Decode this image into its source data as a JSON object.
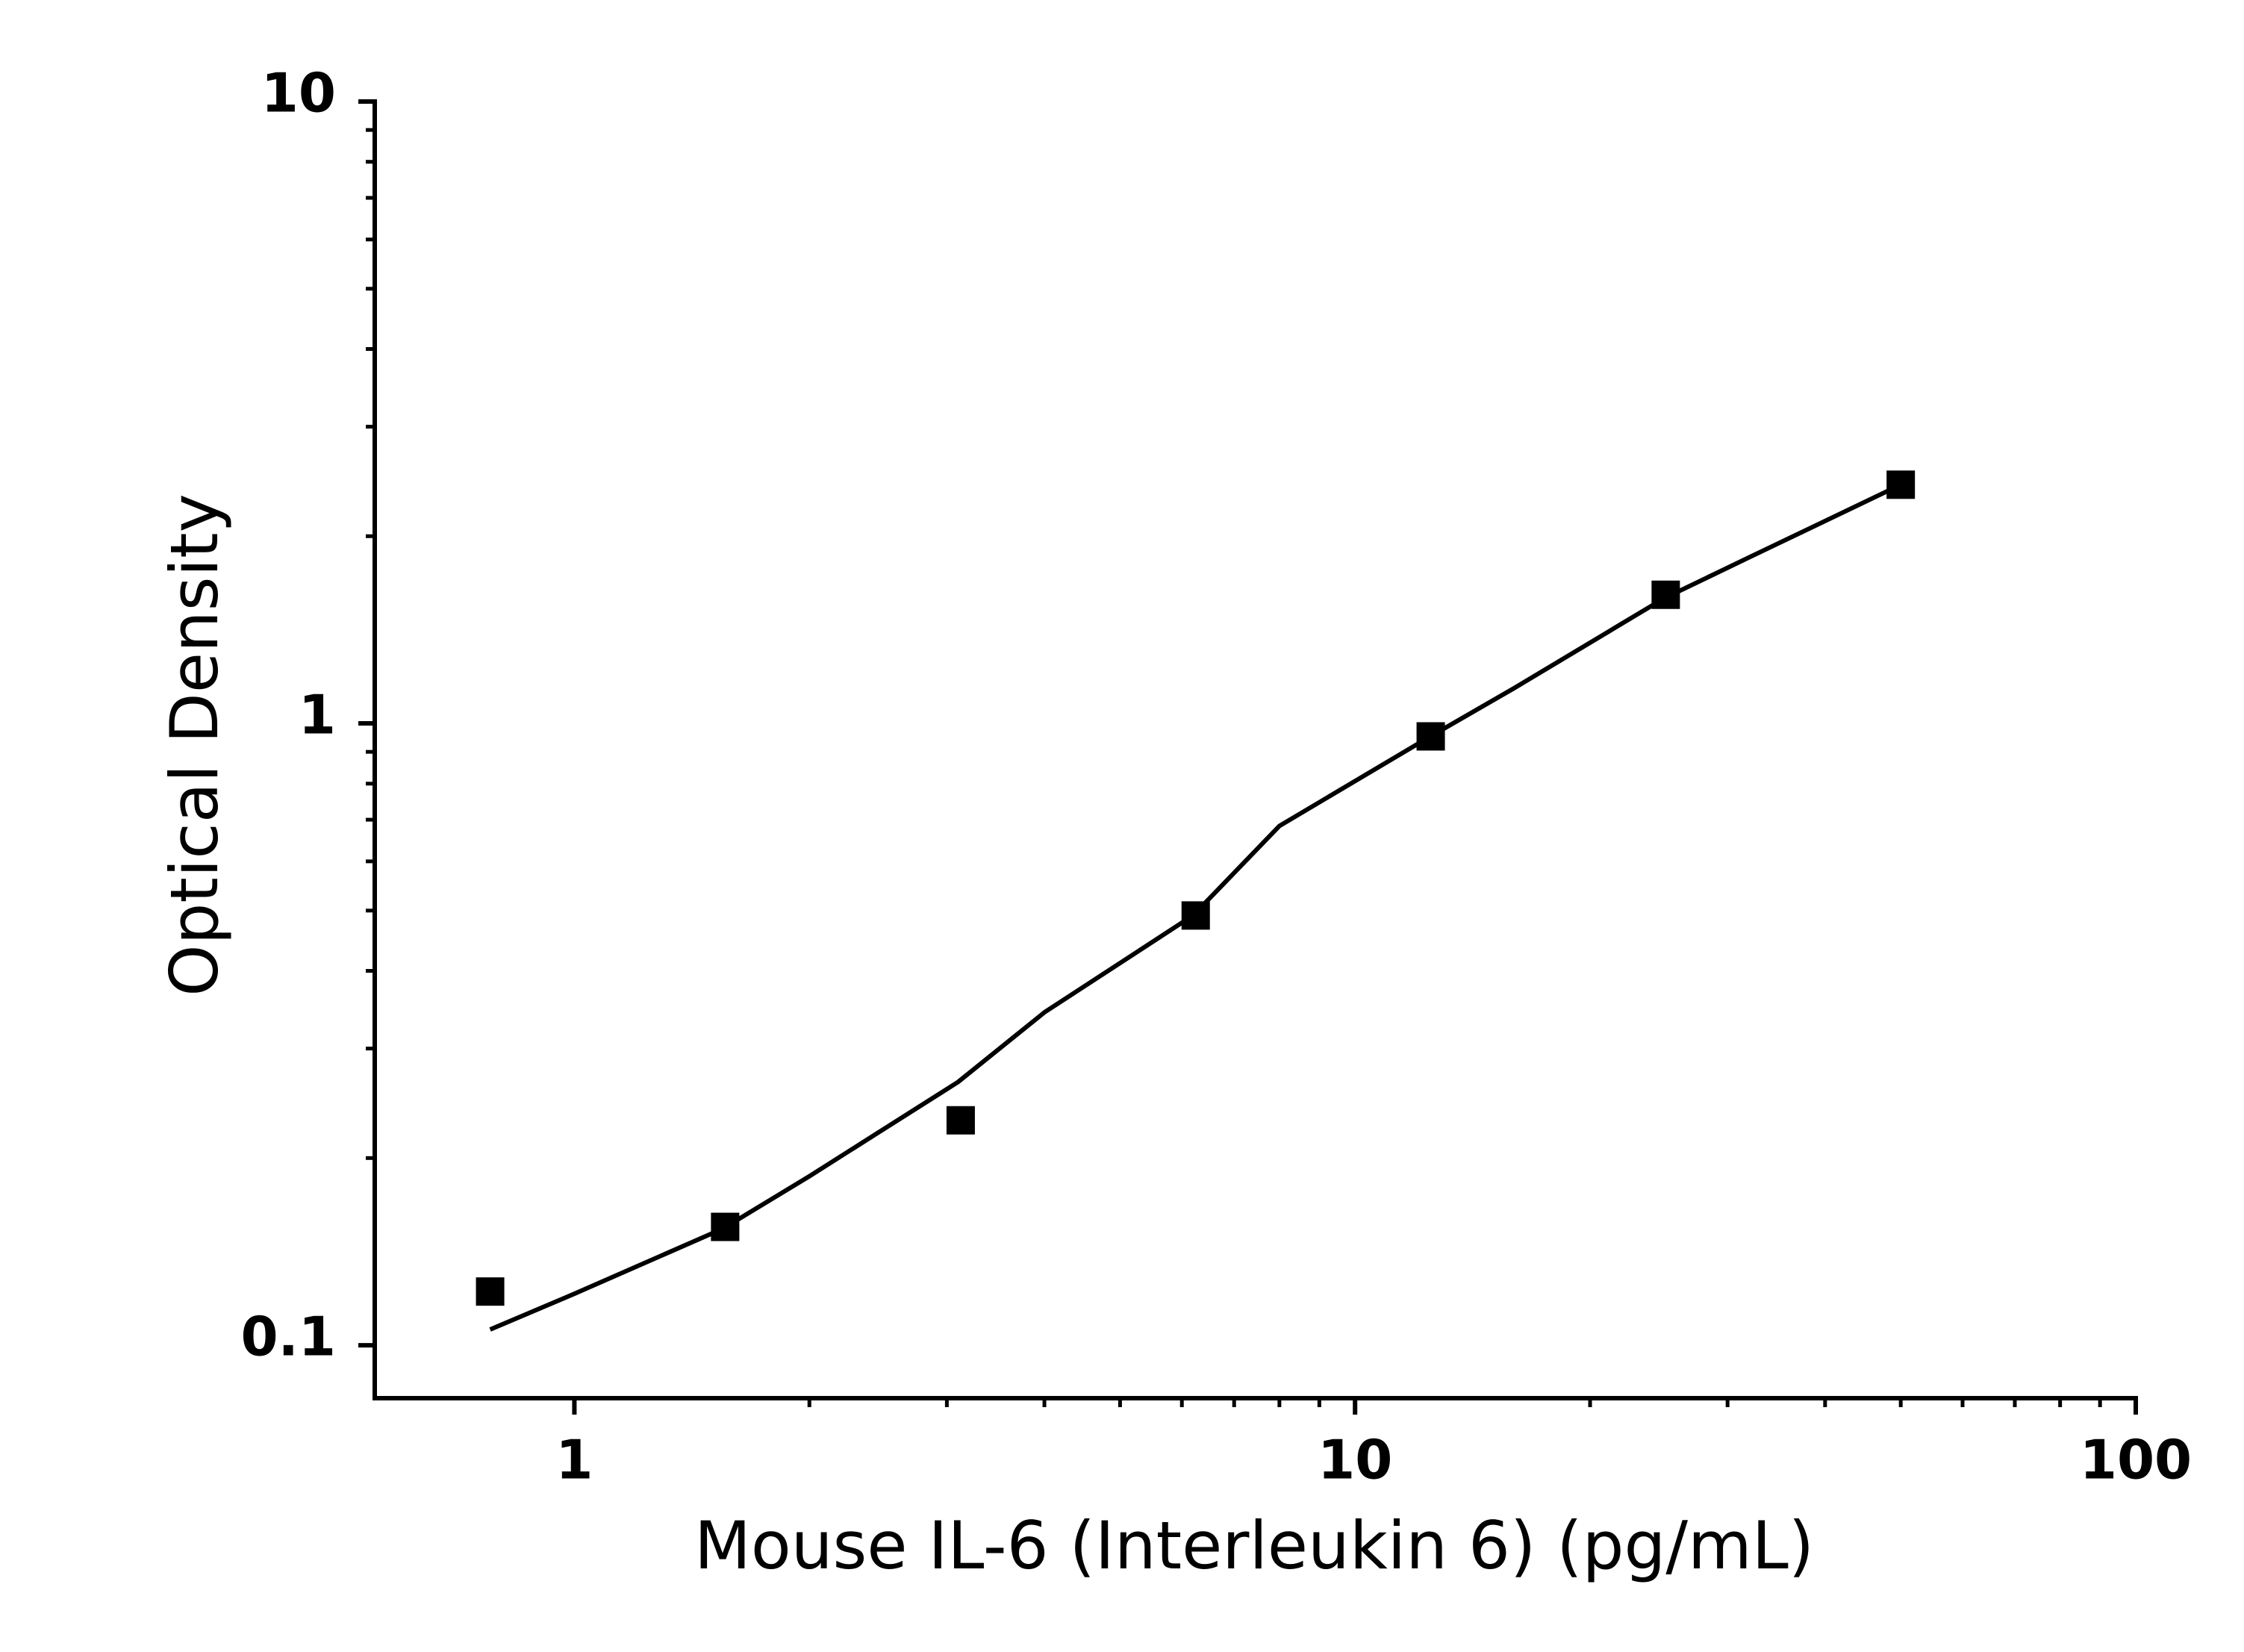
{
  "chart_data": {
    "type": "scatter",
    "x_label": "Mouse IL-6 (Interleukin 6) (pg/mL)",
    "y_label": "Optical Density",
    "x_log": true,
    "y_log": true,
    "xlim": [
      0.555,
      100
    ],
    "ylim": [
      0.0822,
      10
    ],
    "xticks": [
      1,
      10,
      100
    ],
    "yticks": [
      0.1,
      1,
      10
    ],
    "xminorticks": [
      2,
      3,
      4,
      5,
      6,
      7,
      8,
      9,
      20,
      30,
      40,
      50,
      60,
      70,
      80,
      90
    ],
    "yminorticks": [
      0.2,
      0.3,
      0.4,
      0.5,
      0.6,
      0.7,
      0.8,
      0.9,
      2,
      3,
      4,
      5,
      6,
      7,
      8,
      9
    ],
    "series": [
      {
        "marker": "square",
        "color": "#000000",
        "x": [
          0.78,
          1.56,
          3.125,
          6.25,
          12.5,
          25,
          50
        ],
        "values": [
          0.122,
          0.155,
          0.23,
          0.491,
          0.953,
          1.61,
          2.42
        ]
      },
      {
        "marker": "line",
        "color": "#000000",
        "x": [
          0.78,
          1,
          1.55,
          2,
          3.1,
          4,
          6.2,
          8,
          12.4,
          16,
          24.9,
          32,
          50
        ],
        "values": [
          0.106,
          0.121,
          0.154,
          0.187,
          0.265,
          0.343,
          0.491,
          0.684,
          0.948,
          1.14,
          1.59,
          1.85,
          2.42
        ]
      }
    ]
  }
}
